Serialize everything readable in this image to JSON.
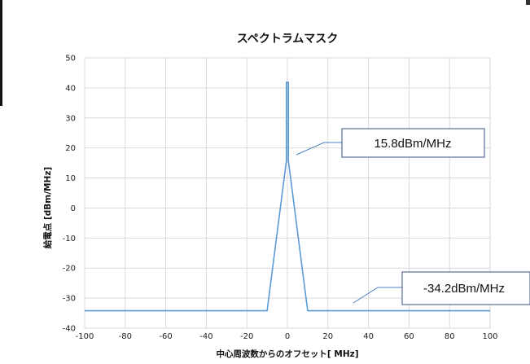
{
  "chart_data": {
    "type": "line",
    "title": "スペクトラムマスク",
    "xlabel": "中心周波数からのオフセット[ MHz]",
    "ylabel": "給電点 [dBm/MHz]",
    "xlim": [
      -100,
      100
    ],
    "ylim": [
      -40,
      50
    ],
    "xticks": [
      -100,
      -80,
      -60,
      -40,
      -20,
      0,
      20,
      40,
      60,
      80,
      100
    ],
    "yticks": [
      -40,
      -30,
      -20,
      -10,
      0,
      10,
      20,
      30,
      40,
      50
    ],
    "grid": true,
    "series": [
      {
        "color": "#5b9bd5",
        "points": [
          [
            -100,
            -34.2
          ],
          [
            -10,
            -34.2
          ],
          [
            -0.5,
            15.8
          ],
          [
            -0.5,
            41.8
          ],
          [
            0.5,
            41.8
          ],
          [
            0.5,
            15.8
          ],
          [
            10,
            -34.2
          ],
          [
            100,
            -34.2
          ]
        ]
      }
    ],
    "annotations": [
      {
        "text": "15.8dBm/MHz",
        "x": 0.5,
        "y": 15.8
      },
      {
        "text": "-34.2dBm/MHz",
        "x": 35,
        "y": -34.2
      }
    ]
  }
}
